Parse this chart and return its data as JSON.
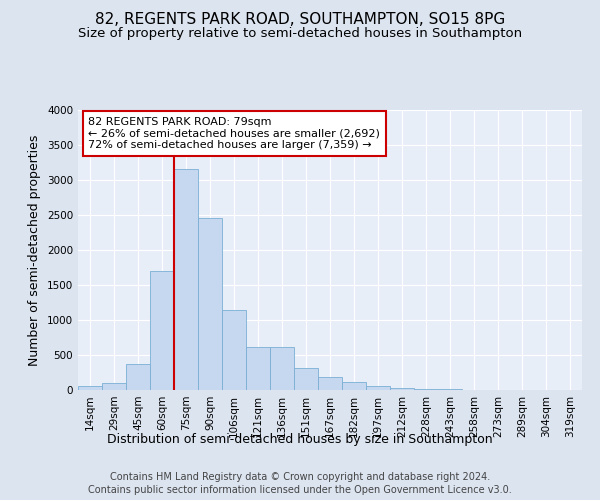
{
  "title": "82, REGENTS PARK ROAD, SOUTHAMPTON, SO15 8PG",
  "subtitle": "Size of property relative to semi-detached houses in Southampton",
  "xlabel": "Distribution of semi-detached houses by size in Southampton",
  "ylabel": "Number of semi-detached properties",
  "footer1": "Contains HM Land Registry data © Crown copyright and database right 2024.",
  "footer2": "Contains public sector information licensed under the Open Government Licence v3.0.",
  "categories": [
    "14sqm",
    "29sqm",
    "45sqm",
    "60sqm",
    "75sqm",
    "90sqm",
    "106sqm",
    "121sqm",
    "136sqm",
    "151sqm",
    "167sqm",
    "182sqm",
    "197sqm",
    "212sqm",
    "228sqm",
    "243sqm",
    "258sqm",
    "273sqm",
    "289sqm",
    "304sqm",
    "319sqm"
  ],
  "values": [
    55,
    100,
    370,
    1700,
    3150,
    2450,
    1150,
    620,
    620,
    320,
    185,
    110,
    55,
    30,
    15,
    10,
    5,
    3,
    2,
    1,
    1
  ],
  "bar_color": "#c5d8ef",
  "bar_edge_color": "#7aafd4",
  "vline_color": "#cc0000",
  "vline_x_index": 4,
  "annotation_line1": "82 REGENTS PARK ROAD: 79sqm",
  "annotation_line2": "← 26% of semi-detached houses are smaller (2,692)",
  "annotation_line3": "72% of semi-detached houses are larger (7,359) →",
  "annotation_box_facecolor": "#ffffff",
  "annotation_box_edgecolor": "#cc0000",
  "ylim": [
    0,
    4000
  ],
  "yticks": [
    0,
    500,
    1000,
    1500,
    2000,
    2500,
    3000,
    3500,
    4000
  ],
  "bg_color": "#dce4f0",
  "plot_bg_color": "#e8eef8",
  "grid_color": "#ffffff",
  "title_fontsize": 11,
  "subtitle_fontsize": 9.5,
  "axis_label_fontsize": 9,
  "tick_fontsize": 7.5,
  "footer_fontsize": 7
}
